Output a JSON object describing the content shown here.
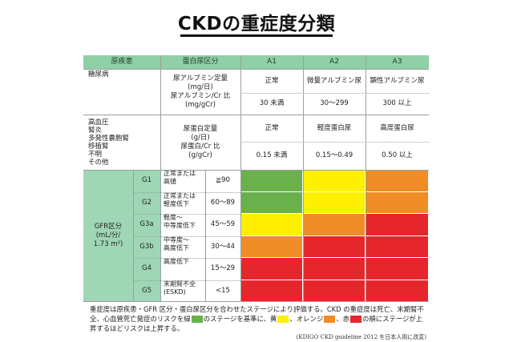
{
  "title": "CKDの重症度分類",
  "colors": {
    "header_bg": "#8fd0a7",
    "side_bg": "#9fd6b5",
    "green": "#6ab04c",
    "yellow": "#ffef00",
    "orange": "#f08c26",
    "red": "#e5272d"
  },
  "header": {
    "disease": "原疾患",
    "protein": "蛋白尿区分",
    "a1": "A1",
    "a2": "A2",
    "a3": "A3"
  },
  "diabetes": {
    "label": "糖尿病",
    "measure_l1": "尿アルブミン定量",
    "measure_l2": "(mg/日)",
    "measure_l3": "尿アルブミン/Cr 比",
    "measure_l4": "(mg/gCr)",
    "a1_name": "正常",
    "a2_name": "微量アルブミン尿",
    "a3_name": "顕性アルブミン尿",
    "a1_range": "30 未満",
    "a2_range": "30〜299",
    "a3_range": "300 以上"
  },
  "other": {
    "l1": "高血圧",
    "l2": "腎炎",
    "l3": "多発性嚢胞腎",
    "l4": "移植腎",
    "l5": "不明",
    "l6": "その他",
    "measure_l1": "尿蛋白定量",
    "measure_l2": "(g/日)",
    "measure_l3": "尿蛋白/Cr 比",
    "measure_l4": "(g/gCr)",
    "a1_name": "正常",
    "a2_name": "軽度蛋白尿",
    "a3_name": "高度蛋白尿",
    "a1_range": "0.15 未満",
    "a2_range": "0.15〜0.49",
    "a3_range": "0.50 以上"
  },
  "gfr_label": {
    "l1": "GFR区分",
    "l2": "(mL/分/",
    "l3": "1.73 m²)"
  },
  "rows": [
    {
      "stage": "G1",
      "desc1": "正常または",
      "desc2": "高値",
      "range": "≧90",
      "colors": [
        "green",
        "yellow",
        "orange"
      ]
    },
    {
      "stage": "G2",
      "desc1": "正常または",
      "desc2": "軽度低下",
      "range": "60〜89",
      "colors": [
        "green",
        "yellow",
        "orange"
      ]
    },
    {
      "stage": "G3a",
      "desc1": "軽度〜",
      "desc2": "中等度低下",
      "range": "45〜59",
      "colors": [
        "yellow",
        "orange",
        "red"
      ]
    },
    {
      "stage": "G3b",
      "desc1": "中等度〜",
      "desc2": "高度低下",
      "range": "30〜44",
      "colors": [
        "orange",
        "red",
        "red"
      ]
    },
    {
      "stage": "G4",
      "desc1": "高度低下",
      "desc2": "",
      "range": "15〜29",
      "colors": [
        "red",
        "red",
        "red"
      ]
    },
    {
      "stage": "G5",
      "desc1": "末期腎不全",
      "desc2": "(ESKD)",
      "range": "<15",
      "colors": [
        "red",
        "red",
        "red"
      ]
    }
  ],
  "footnote": {
    "p1": "重症度は原疾患・GFR 区分・蛋白尿区分を合わせたステージにより評価する。CKD の重症度は死亡、末期腎不全、心血管死亡発症のリスクを緑",
    "p2": "のステージを基準に、黄",
    "p3": "、オレンジ",
    "p4": "、赤",
    "p5": "の順にステージが上昇するほどリスクは上昇する。"
  },
  "citation": "(KDIGO CKD guideline 2012 を日本人用に改変)"
}
